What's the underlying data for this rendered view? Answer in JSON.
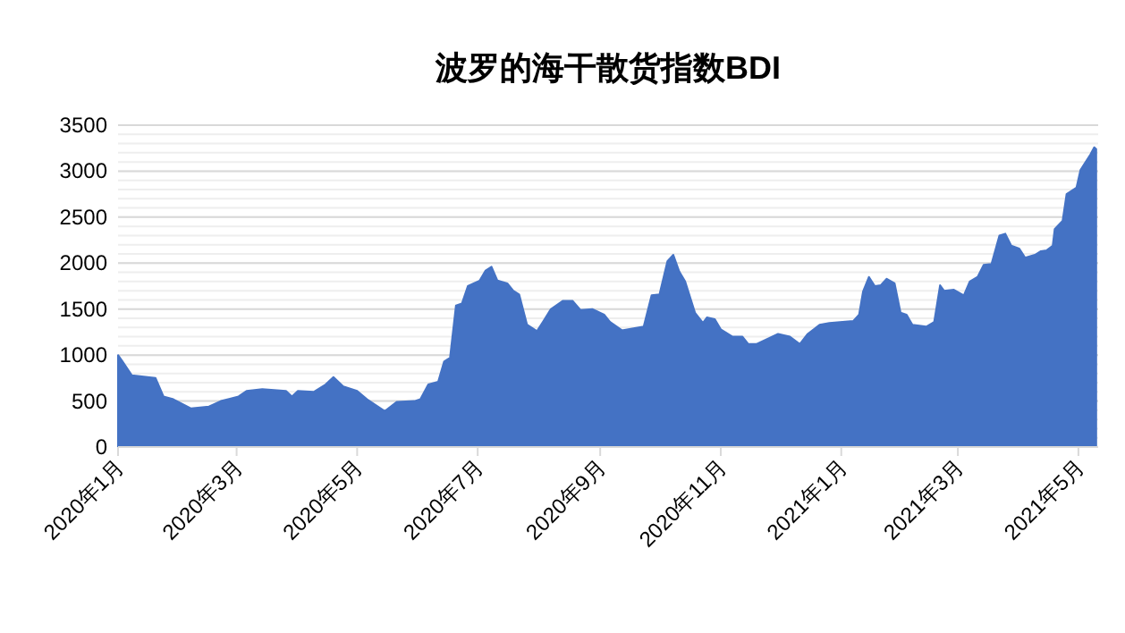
{
  "chart_data": {
    "type": "area",
    "title": "波罗的海干散货指数BDI",
    "x": [
      "2020-01-01",
      "2020-01-03",
      "2020-01-08",
      "2020-01-20",
      "2020-01-24",
      "2020-01-29",
      "2020-02-07",
      "2020-02-16",
      "2020-02-22",
      "2020-03-02",
      "2020-03-06",
      "2020-03-14",
      "2020-03-26",
      "2020-03-29",
      "2020-04-01",
      "2020-04-09",
      "2020-04-15",
      "2020-04-19",
      "2020-04-24",
      "2020-05-01",
      "2020-05-06",
      "2020-05-15",
      "2020-05-21",
      "2020-05-30",
      "2020-06-02",
      "2020-06-06",
      "2020-06-11",
      "2020-06-14",
      "2020-06-17",
      "2020-06-20",
      "2020-06-23",
      "2020-06-26",
      "2020-07-02",
      "2020-07-05",
      "2020-07-08",
      "2020-07-11",
      "2020-07-16",
      "2020-07-19",
      "2020-07-22",
      "2020-07-26",
      "2020-07-31",
      "2020-08-03",
      "2020-08-07",
      "2020-08-13",
      "2020-08-18",
      "2020-08-22",
      "2020-08-28",
      "2020-09-03",
      "2020-09-06",
      "2020-09-12",
      "2020-09-23",
      "2020-09-27",
      "2020-10-01",
      "2020-10-05",
      "2020-10-08",
      "2020-10-11",
      "2020-10-14",
      "2020-10-19",
      "2020-10-23",
      "2020-10-25",
      "2020-10-29",
      "2020-11-01",
      "2020-11-07",
      "2020-11-12",
      "2020-11-15",
      "2020-11-19",
      "2020-11-30",
      "2020-12-06",
      "2020-12-11",
      "2020-12-15",
      "2020-12-21",
      "2020-12-26",
      "2021-01-07",
      "2021-01-10",
      "2021-01-12",
      "2021-01-15",
      "2021-01-18",
      "2021-01-21",
      "2021-01-24",
      "2021-01-28",
      "2021-01-31",
      "2021-02-03",
      "2021-02-06",
      "2021-02-13",
      "2021-02-17",
      "2021-02-20",
      "2021-02-22",
      "2021-02-27",
      "2021-03-04",
      "2021-03-07",
      "2021-03-11",
      "2021-03-14",
      "2021-03-18",
      "2021-03-22",
      "2021-03-25",
      "2021-03-28",
      "2021-04-01",
      "2021-04-04",
      "2021-04-09",
      "2021-04-12",
      "2021-04-15",
      "2021-04-18",
      "2021-04-19",
      "2021-04-23",
      "2021-04-25",
      "2021-04-30",
      "2021-05-02",
      "2021-05-07",
      "2021-05-09",
      "2021-05-10"
    ],
    "series": [
      {
        "color": "#4472c4",
        "values": [
          1000,
          940,
          780,
          750,
          550,
          520,
          420,
          440,
          500,
          550,
          610,
          630,
          610,
          550,
          610,
          600,
          680,
          760,
          660,
          610,
          520,
          390,
          490,
          500,
          520,
          680,
          710,
          930,
          970,
          1540,
          1560,
          1750,
          1810,
          1920,
          1960,
          1810,
          1780,
          1700,
          1660,
          1330,
          1260,
          1360,
          1500,
          1590,
          1590,
          1490,
          1500,
          1440,
          1360,
          1270,
          1310,
          1650,
          1660,
          2020,
          2090,
          1910,
          1800,
          1460,
          1350,
          1410,
          1390,
          1280,
          1200,
          1200,
          1120,
          1120,
          1230,
          1200,
          1120,
          1230,
          1330,
          1350,
          1370,
          1440,
          1690,
          1850,
          1750,
          1760,
          1830,
          1780,
          1460,
          1440,
          1330,
          1310,
          1360,
          1760,
          1700,
          1710,
          1650,
          1800,
          1850,
          1980,
          1990,
          2300,
          2320,
          2190,
          2160,
          2060,
          2090,
          2130,
          2140,
          2190,
          2370,
          2460,
          2750,
          2820,
          3010,
          3180,
          3260,
          3240
        ]
      }
    ],
    "xlim": [
      "2020-01-01",
      "2021-05-11"
    ],
    "xticks": [
      {
        "value": "2020-01-01",
        "label": "2020年1月"
      },
      {
        "value": "2020-03-01",
        "label": "2020年3月"
      },
      {
        "value": "2020-05-01",
        "label": "2020年5月"
      },
      {
        "value": "2020-07-01",
        "label": "2020年7月"
      },
      {
        "value": "2020-09-01",
        "label": "2020年9月"
      },
      {
        "value": "2020-11-01",
        "label": "2020年11月"
      },
      {
        "value": "2021-01-01",
        "label": "2021年1月"
      },
      {
        "value": "2021-03-01",
        "label": "2021年3月"
      },
      {
        "value": "2021-05-01",
        "label": "2021年5月"
      }
    ],
    "ylim": [
      0,
      3500
    ],
    "yticks": [
      0,
      500,
      1000,
      1500,
      2000,
      2500,
      3000,
      3500
    ],
    "grid": "y"
  }
}
